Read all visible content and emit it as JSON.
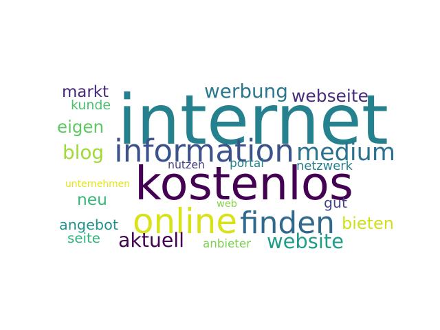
{
  "words": [
    {
      "id": "internet",
      "text": "internet",
      "color": "#26818e"
    },
    {
      "id": "kostenlos",
      "text": "kostenlos",
      "color": "#440154"
    },
    {
      "id": "information",
      "text": "information",
      "color": "#3b528b"
    },
    {
      "id": "medium",
      "text": "medium",
      "color": "#2c728e"
    },
    {
      "id": "online",
      "text": "online",
      "color": "#d8e219"
    },
    {
      "id": "finden",
      "text": "finden",
      "color": "#31688e"
    },
    {
      "id": "neu",
      "text": "neu",
      "color": "#35b779"
    },
    {
      "id": "werbung",
      "text": "werbung",
      "color": "#2a788e"
    },
    {
      "id": "webseite",
      "text": "webseite",
      "color": "#472d7b"
    },
    {
      "id": "website",
      "text": "website",
      "color": "#1f9e89"
    },
    {
      "id": "markt",
      "text": "markt",
      "color": "#482878"
    },
    {
      "id": "blog",
      "text": "blog",
      "color": "#a0da39"
    },
    {
      "id": "eigen",
      "text": "eigen",
      "color": "#5ec962"
    },
    {
      "id": "kunde",
      "text": "kunde",
      "color": "#4ac16d"
    },
    {
      "id": "angebot",
      "text": "angebot",
      "color": "#21918c"
    },
    {
      "id": "aktuell",
      "text": "aktuell",
      "color": "#440154"
    },
    {
      "id": "bieten",
      "text": "bieten",
      "color": "#d0e11c"
    },
    {
      "id": "gut",
      "text": "gut",
      "color": "#414487"
    },
    {
      "id": "seite",
      "text": "seite",
      "color": "#2fb47c"
    },
    {
      "id": "nutzen",
      "text": "nutzen",
      "color": "#433e85"
    },
    {
      "id": "portal",
      "text": "portal",
      "color": "#25838e"
    },
    {
      "id": "netzwerk",
      "text": "netzwerk",
      "color": "#277f8e"
    },
    {
      "id": "unternehmen",
      "text": "unternehmen",
      "color": "#e5e419"
    },
    {
      "id": "web",
      "text": "web",
      "color": "#86d549"
    },
    {
      "id": "anbieter",
      "text": "anbieter",
      "color": "#7ad151"
    }
  ]
}
